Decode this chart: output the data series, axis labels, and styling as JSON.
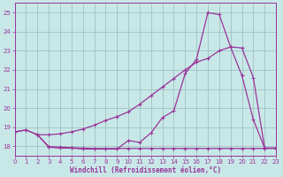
{
  "xlabel": "Windchill (Refroidissement éolien,°C)",
  "bg_color": "#c8e8e8",
  "line_color": "#993399",
  "grid_color": "#99bbbb",
  "xlim": [
    0,
    23
  ],
  "ylim": [
    17.5,
    25.5
  ],
  "yticks": [
    18,
    19,
    20,
    21,
    22,
    23,
    24,
    25
  ],
  "xticks": [
    0,
    1,
    2,
    3,
    4,
    5,
    6,
    7,
    8,
    9,
    10,
    11,
    12,
    13,
    14,
    15,
    16,
    17,
    18,
    19,
    20,
    21,
    22,
    23
  ],
  "line1_x": [
    0,
    1,
    2,
    3,
    4,
    5,
    6,
    7,
    8,
    9,
    10,
    11,
    12,
    13,
    14,
    15,
    16,
    17,
    18,
    19,
    20,
    21,
    22,
    23
  ],
  "line1_y": [
    18.75,
    18.85,
    18.6,
    17.95,
    17.9,
    17.9,
    17.85,
    17.85,
    17.85,
    17.85,
    18.3,
    18.2,
    18.7,
    19.5,
    19.85,
    21.8,
    22.55,
    25.0,
    24.9,
    23.2,
    21.7,
    19.4,
    17.9,
    17.9
  ],
  "line2_x": [
    0,
    1,
    2,
    3,
    4,
    5,
    6,
    7,
    8,
    9,
    10,
    11,
    12,
    13,
    14,
    15,
    16,
    17,
    18,
    19,
    20,
    21,
    22,
    23
  ],
  "line2_y": [
    18.75,
    18.85,
    18.6,
    18.6,
    18.65,
    18.75,
    18.9,
    19.1,
    19.35,
    19.55,
    19.8,
    20.2,
    20.65,
    21.1,
    21.55,
    22.0,
    22.4,
    22.6,
    23.0,
    23.2,
    23.15,
    21.6,
    17.9,
    17.9
  ],
  "line3_x": [
    2,
    3,
    4,
    5,
    6,
    7,
    8,
    9,
    10,
    11,
    12,
    13,
    14,
    15,
    16,
    17,
    18,
    19,
    20,
    21,
    22,
    23
  ],
  "line3_y": [
    18.6,
    17.98,
    17.95,
    17.92,
    17.9,
    17.88,
    17.88,
    17.88,
    17.88,
    17.88,
    17.88,
    17.88,
    17.88,
    17.88,
    17.88,
    17.88,
    17.88,
    17.88,
    17.88,
    17.88,
    17.88,
    17.88
  ]
}
